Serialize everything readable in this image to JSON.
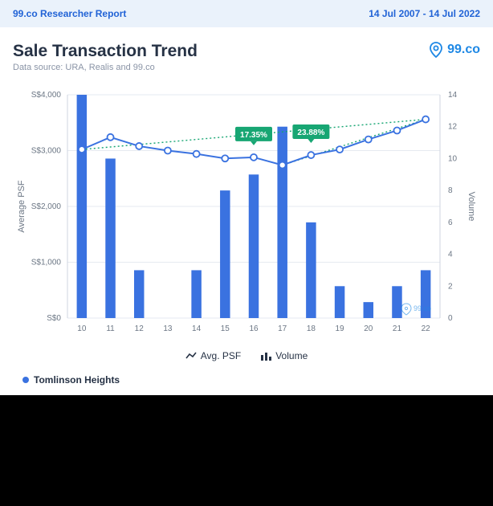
{
  "header": {
    "report_label": "99.co Researcher Report",
    "date_range": "14 Jul 2007 - 14 Jul 2022"
  },
  "chart": {
    "title": "Sale Transaction Trend",
    "subtitle": "Data source: URA, Realis and 99.co",
    "brand": "99.co",
    "type": "combo-bar-line",
    "background_color": "#ffffff",
    "bar_color": "#3a72e0",
    "line_color": "#3a72e0",
    "marker_fill": "#ffffff",
    "marker_stroke": "#3a72e0",
    "grid_color": "#e6eaf0",
    "trend_color": "#17a673",
    "badge_color": "#17a673",
    "x_categories": [
      "10",
      "11",
      "12",
      "13",
      "14",
      "15",
      "16",
      "17",
      "18",
      "19",
      "20",
      "21",
      "22"
    ],
    "y_left_label": "Average PSF",
    "y_left_ticks": [
      "S$0",
      "S$1,000",
      "S$2,000",
      "S$3,000",
      "S$4,000"
    ],
    "y_left_lim": [
      0,
      4000
    ],
    "y_right_label": "Volume",
    "y_right_ticks": [
      "0",
      "2",
      "4",
      "6",
      "8",
      "10",
      "12",
      "14"
    ],
    "y_right_lim": [
      0,
      14
    ],
    "volume_values": [
      14,
      10,
      3,
      0,
      3,
      8,
      9,
      12,
      6,
      2,
      1,
      2,
      3
    ],
    "psf_values": [
      3020,
      3240,
      3080,
      3000,
      2940,
      2860,
      2880,
      2740,
      2920,
      3020,
      3200,
      3360,
      3560
    ],
    "badges": [
      {
        "at_index": 6,
        "label": "17.35%"
      },
      {
        "at_index": 8,
        "label": "23.88%"
      }
    ],
    "trend_lines": [
      {
        "from_index": 0,
        "to_index": 12
      },
      {
        "from_index": 7,
        "to_index": 12
      }
    ],
    "bar_width": 0.35,
    "marker_radius": 4,
    "line_width": 2,
    "watermark": "99.co"
  },
  "legend": {
    "avg_psf": "Avg. PSF",
    "volume": "Volume"
  },
  "series": {
    "name": "Tomlinson Heights",
    "color": "#3a72e0"
  }
}
